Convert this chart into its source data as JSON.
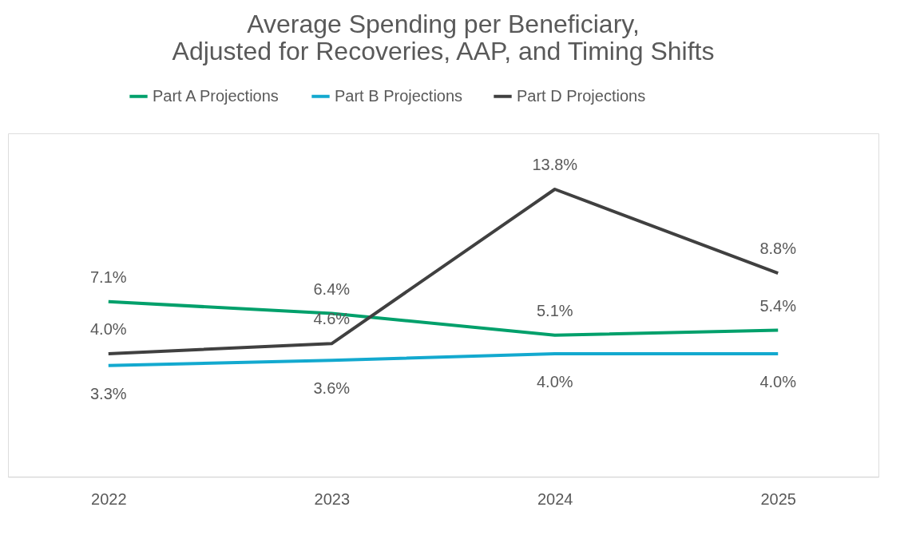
{
  "chart_data": {
    "type": "line",
    "title": "Average Spending per Beneficiary,\nAdjusted for Recoveries, AAP, and Timing Shifts",
    "categories": [
      "2022",
      "2023",
      "2024",
      "2025"
    ],
    "series": [
      {
        "name": "Part A Projections",
        "color": "#00a06b",
        "values": [
          7.1,
          6.4,
          5.1,
          5.4
        ],
        "value_labels": [
          "7.1%",
          "6.4%",
          "5.1%",
          "5.4%"
        ]
      },
      {
        "name": "Part B Projections",
        "color": "#13a9cf",
        "values": [
          3.3,
          3.6,
          4.0,
          4.0
        ],
        "value_labels": [
          "3.3%",
          "3.6%",
          "4.0%",
          "4.0%"
        ]
      },
      {
        "name": "Part D Projections",
        "color": "#404040",
        "values": [
          4.0,
          4.6,
          13.8,
          8.8
        ],
        "value_labels": [
          "4.0%",
          "4.6%",
          "13.8%",
          "8.8%"
        ]
      }
    ],
    "legend": "top",
    "tick_labels": "x"
  }
}
